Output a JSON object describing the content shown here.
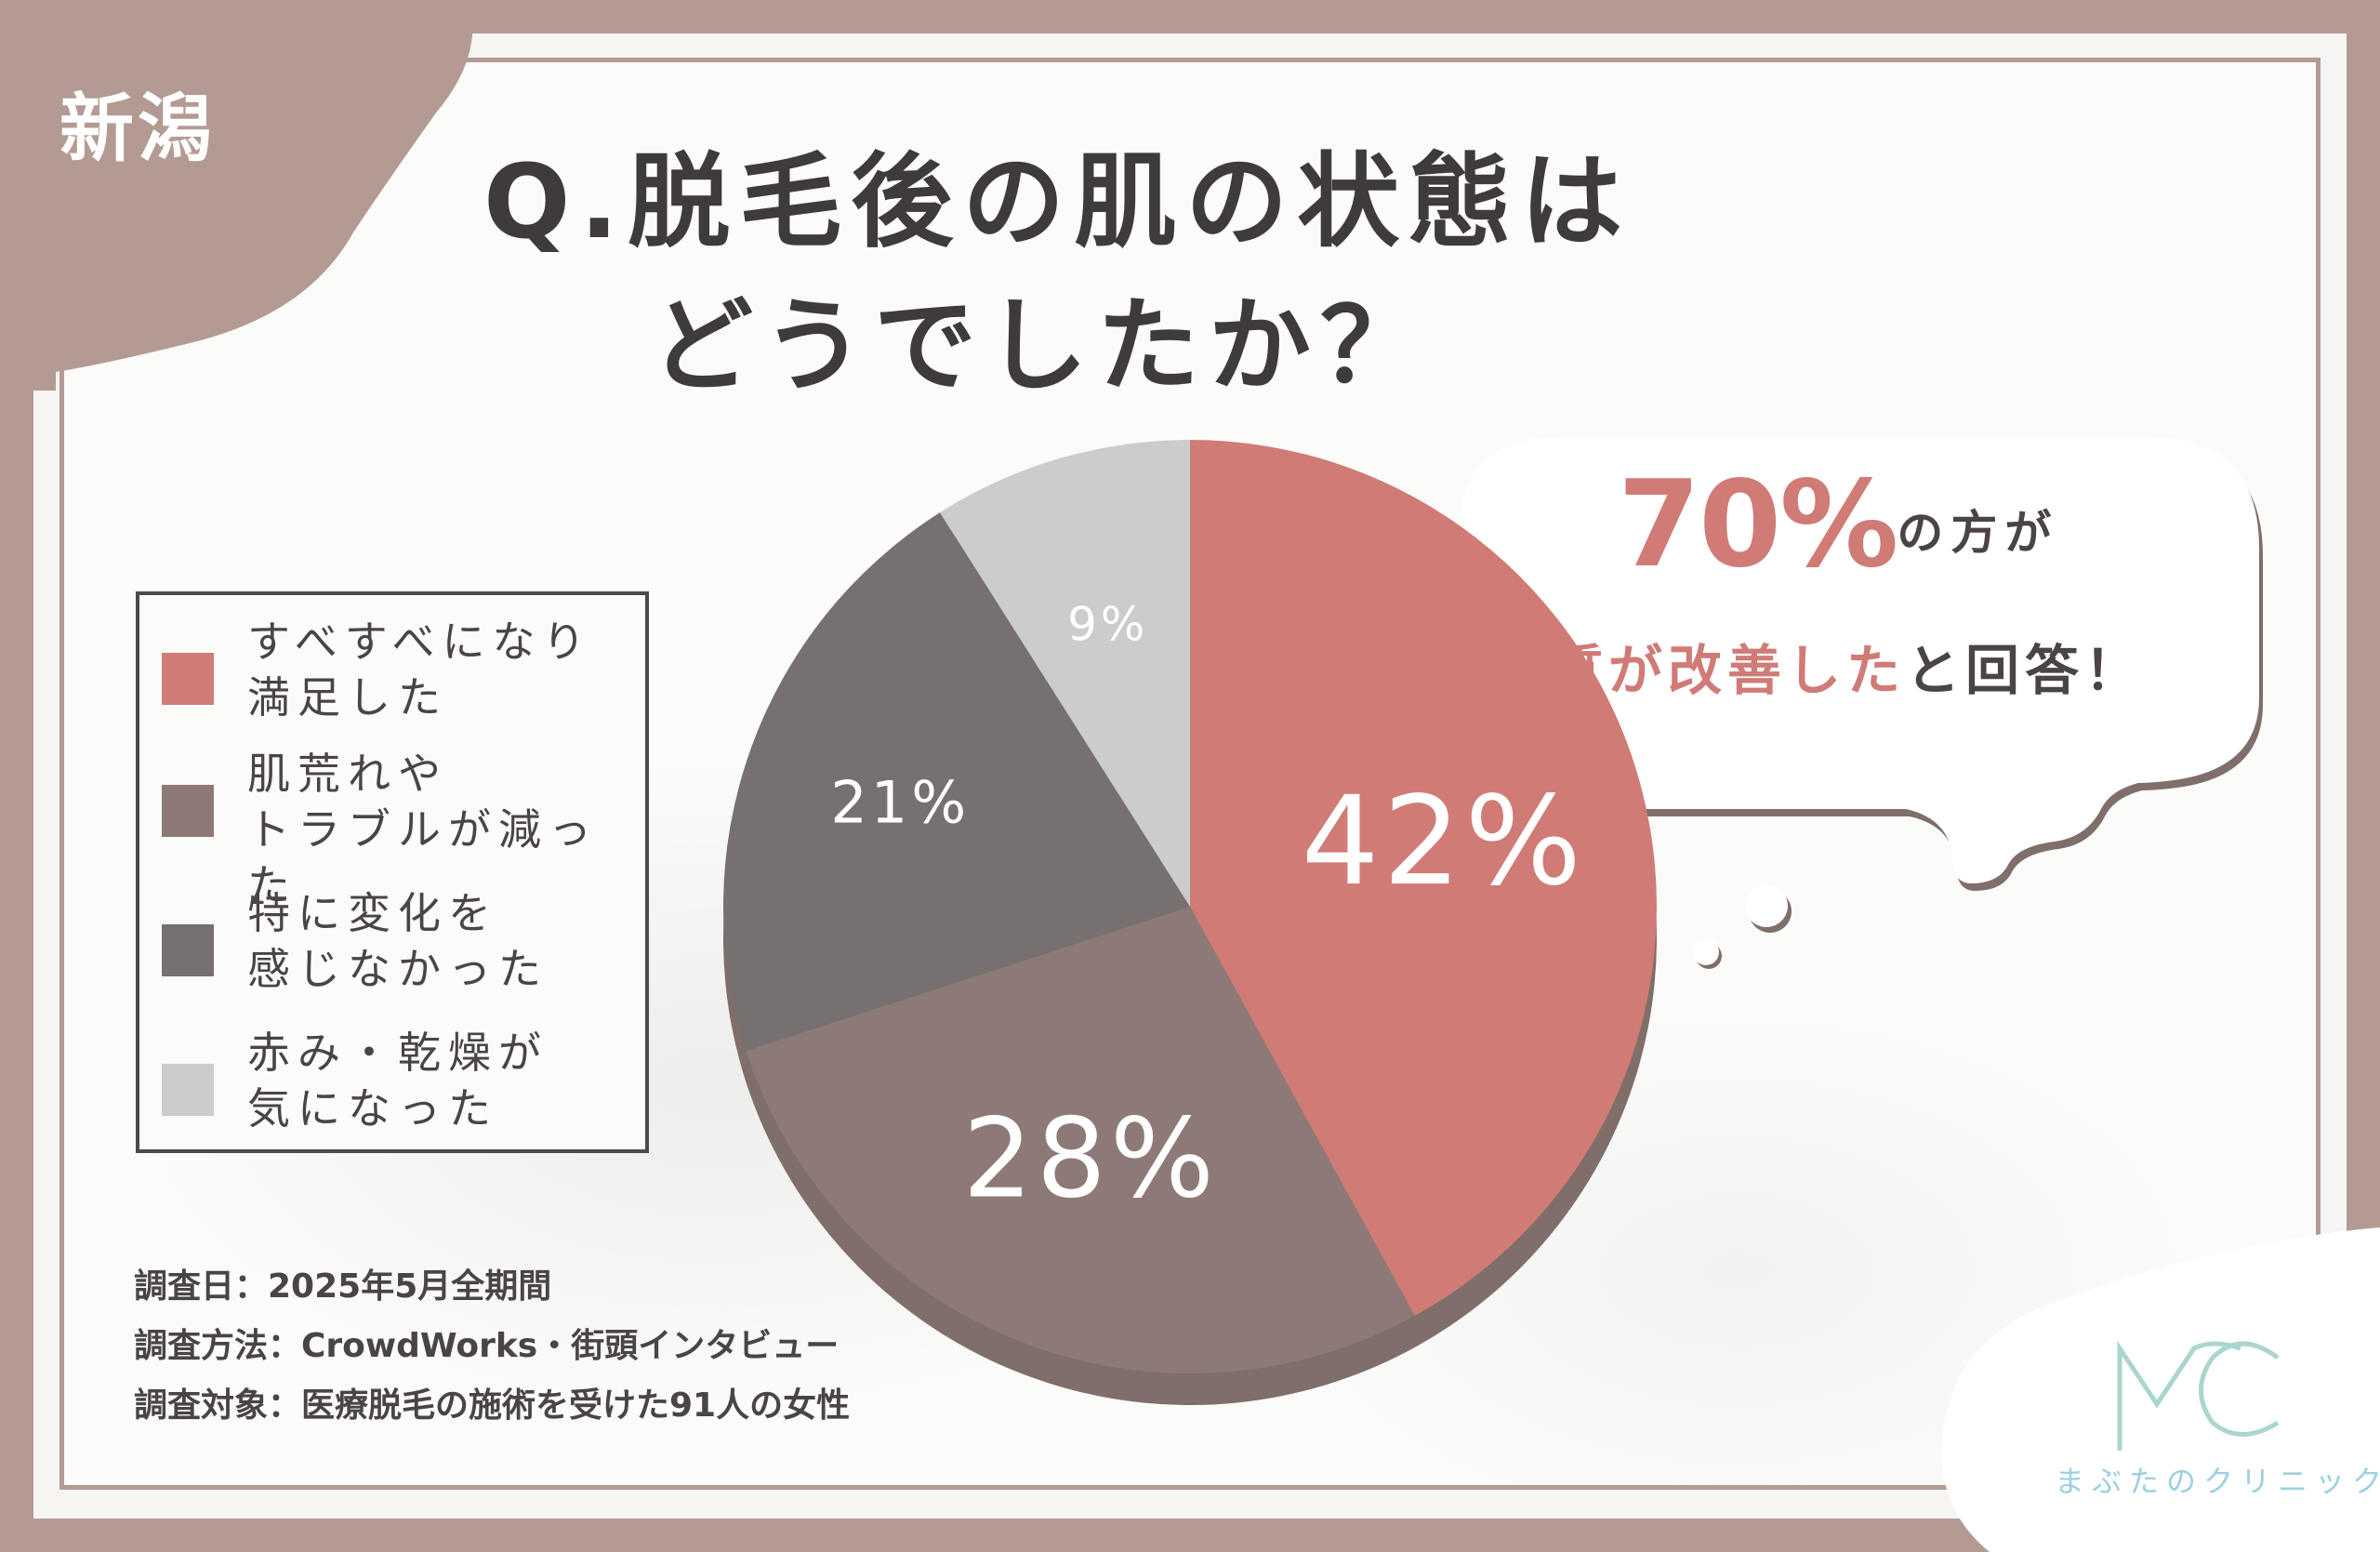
{
  "region": "新潟",
  "title": {
    "line1": "Q.脱毛後の肌の状態は",
    "line2": "どうでしたか？"
  },
  "chart_data": {
    "type": "pie",
    "categories": [
      "すべすべになり満足した",
      "肌荒れやトラブルが減った",
      "特に変化を感じなかった",
      "赤み・乾燥が気になった"
    ],
    "values": [
      42,
      28,
      21,
      9
    ],
    "labels": [
      "42%",
      "28%",
      "21%",
      "9%"
    ],
    "colors": [
      "#d07b76",
      "#8d7a76",
      "#767170",
      "#cccccc"
    ],
    "legend": {
      "position": "left",
      "items": [
        {
          "line1": "すべすべになり",
          "line2": "満足した"
        },
        {
          "line1": "肌荒れや",
          "line2": "トラブルが減った"
        },
        {
          "line1": "特に変化を",
          "line2": "感じなかった"
        },
        {
          "line1": "赤み・乾燥が",
          "line2": "気になった"
        }
      ]
    }
  },
  "callout": {
    "percent": "70%",
    "text1": "の方が",
    "highlight": "肌質が改善した",
    "text2": "と回答！"
  },
  "notes": [
    "調査日：2025年5月全期間",
    "調査方法：CrowdWorks・街頭インタビュー",
    "調査対象：医療脱毛の施術を受けた91人の女性"
  ],
  "logo": {
    "mark": "MC",
    "name": "まぶたのクリニック"
  }
}
